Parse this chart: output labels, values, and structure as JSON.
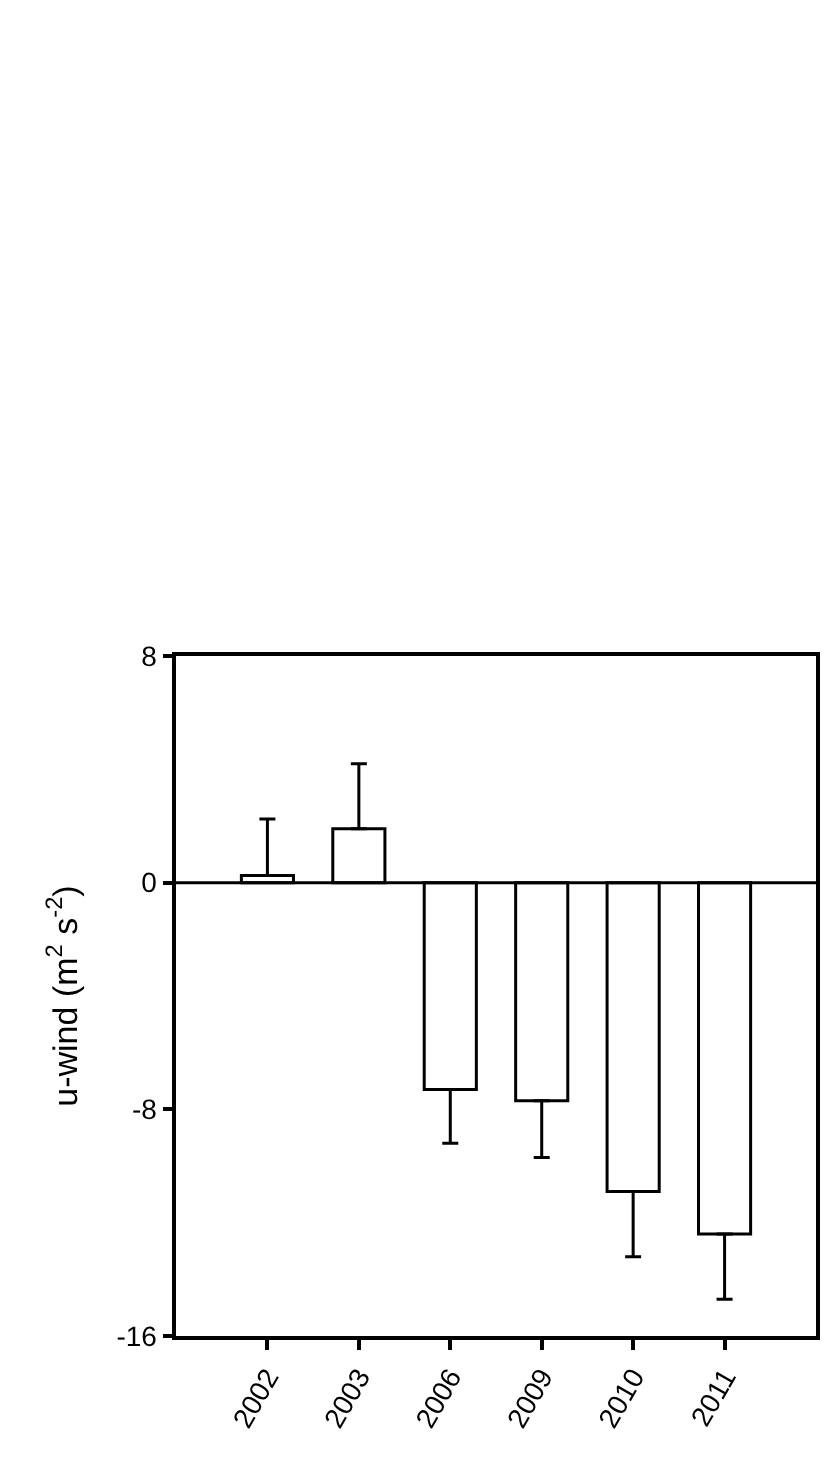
{
  "chart_data": {
    "type": "bar",
    "ylabel": "u-wind (m$^{2}$ s$^{-2}$)",
    "categories": [
      "2002",
      "2003",
      "2006",
      "2009",
      "2010",
      "2011"
    ],
    "values": [
      0.25,
      1.9,
      -7.3,
      -7.7,
      -10.9,
      -12.4
    ],
    "errors": [
      [
        0.25,
        2.25
      ],
      [
        1.9,
        4.2
      ],
      [
        -9.2,
        -7.3
      ],
      [
        -9.7,
        -7.7
      ],
      [
        -13.2,
        -10.9
      ],
      [
        -14.7,
        -12.4
      ]
    ],
    "color": "#ffffff",
    "ylim": [
      -16,
      8
    ],
    "yticks": [
      -16,
      -8,
      0,
      8
    ],
    "ref_lines": [
      {
        "axis": "y",
        "value": 0,
        "color": "#000000"
      }
    ]
  }
}
